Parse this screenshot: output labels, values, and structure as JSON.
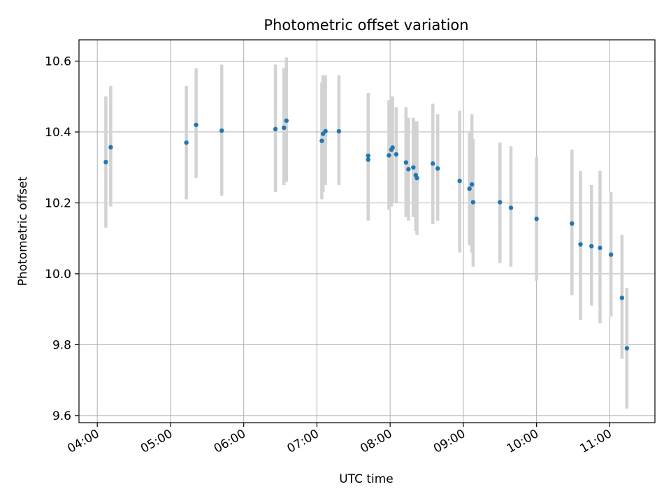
{
  "chart_data": {
    "type": "scatter",
    "title": "Photometric offset variation",
    "xlabel": "UTC time",
    "ylabel": "Photometric offset",
    "x_tick_labels": [
      "04:00",
      "05:00",
      "06:00",
      "07:00",
      "08:00",
      "09:00",
      "10:00",
      "11:00"
    ],
    "y_tick_labels": [
      "9.6",
      "9.8",
      "10.0",
      "10.2",
      "10.4",
      "10.6"
    ],
    "y_ticks": [
      9.6,
      9.8,
      10.0,
      10.2,
      10.4,
      10.6
    ],
    "xlim": [
      "03:45",
      "11:37"
    ],
    "ylim": [
      9.58,
      10.66
    ],
    "grid": true,
    "point_color": "#1f77b4",
    "errorbar_color": "#d3d3d3",
    "series": [
      {
        "points": [
          {
            "x": "04:07",
            "y": 10.315,
            "ylo": 10.13,
            "yhi": 10.5
          },
          {
            "x": "04:11",
            "y": 10.357,
            "ylo": 10.19,
            "yhi": 10.53
          },
          {
            "x": "05:13",
            "y": 10.37,
            "ylo": 10.21,
            "yhi": 10.53
          },
          {
            "x": "05:21",
            "y": 10.42,
            "ylo": 10.27,
            "yhi": 10.58
          },
          {
            "x": "05:42",
            "y": 10.404,
            "ylo": 10.22,
            "yhi": 10.59
          },
          {
            "x": "06:26",
            "y": 10.408,
            "ylo": 10.23,
            "yhi": 10.59
          },
          {
            "x": "06:33",
            "y": 10.412,
            "ylo": 10.25,
            "yhi": 10.58
          },
          {
            "x": "06:35",
            "y": 10.432,
            "ylo": 10.26,
            "yhi": 10.61
          },
          {
            "x": "07:04",
            "y": 10.375,
            "ylo": 10.21,
            "yhi": 10.54
          },
          {
            "x": "07:05",
            "y": 10.395,
            "ylo": 10.23,
            "yhi": 10.56
          },
          {
            "x": "07:07",
            "y": 10.402,
            "ylo": 10.25,
            "yhi": 10.56
          },
          {
            "x": "07:18",
            "y": 10.402,
            "ylo": 10.25,
            "yhi": 10.56
          },
          {
            "x": "07:42",
            "y": 10.322,
            "ylo": 10.15,
            "yhi": 10.49
          },
          {
            "x": "07:42",
            "y": 10.333,
            "ylo": 10.16,
            "yhi": 10.51
          },
          {
            "x": "07:59",
            "y": 10.334,
            "ylo": 10.18,
            "yhi": 10.49
          },
          {
            "x": "08:01",
            "y": 10.35,
            "ylo": 10.19,
            "yhi": 10.5
          },
          {
            "x": "08:02",
            "y": 10.356,
            "ylo": 10.2,
            "yhi": 10.5
          },
          {
            "x": "08:05",
            "y": 10.337,
            "ylo": 10.2,
            "yhi": 10.47
          },
          {
            "x": "08:13",
            "y": 10.314,
            "ylo": 10.16,
            "yhi": 10.47
          },
          {
            "x": "08:15",
            "y": 10.295,
            "ylo": 10.15,
            "yhi": 10.44
          },
          {
            "x": "08:19",
            "y": 10.3,
            "ylo": 10.16,
            "yhi": 10.44
          },
          {
            "x": "08:21",
            "y": 10.278,
            "ylo": 10.12,
            "yhi": 10.43
          },
          {
            "x": "08:22",
            "y": 10.27,
            "ylo": 10.11,
            "yhi": 10.43
          },
          {
            "x": "08:35",
            "y": 10.311,
            "ylo": 10.14,
            "yhi": 10.48
          },
          {
            "x": "08:39",
            "y": 10.297,
            "ylo": 10.15,
            "yhi": 10.45
          },
          {
            "x": "08:57",
            "y": 10.262,
            "ylo": 10.06,
            "yhi": 10.46
          },
          {
            "x": "09:05",
            "y": 10.24,
            "ylo": 10.08,
            "yhi": 10.4
          },
          {
            "x": "09:07",
            "y": 10.252,
            "ylo": 10.06,
            "yhi": 10.45
          },
          {
            "x": "09:08",
            "y": 10.202,
            "ylo": 10.02,
            "yhi": 10.38
          },
          {
            "x": "09:30",
            "y": 10.202,
            "ylo": 10.03,
            "yhi": 10.37
          },
          {
            "x": "09:39",
            "y": 10.186,
            "ylo": 10.02,
            "yhi": 10.36
          },
          {
            "x": "10:00",
            "y": 10.155,
            "ylo": 9.98,
            "yhi": 10.33
          },
          {
            "x": "10:29",
            "y": 10.142,
            "ylo": 9.94,
            "yhi": 10.35
          },
          {
            "x": "10:36",
            "y": 10.083,
            "ylo": 9.87,
            "yhi": 10.29
          },
          {
            "x": "10:45",
            "y": 10.078,
            "ylo": 9.91,
            "yhi": 10.25
          },
          {
            "x": "10:52",
            "y": 10.073,
            "ylo": 9.86,
            "yhi": 10.29
          },
          {
            "x": "11:01",
            "y": 10.054,
            "ylo": 9.88,
            "yhi": 10.23
          },
          {
            "x": "11:10",
            "y": 9.932,
            "ylo": 9.76,
            "yhi": 10.11
          },
          {
            "x": "11:14",
            "y": 9.79,
            "ylo": 9.62,
            "yhi": 9.96
          }
        ]
      }
    ]
  }
}
